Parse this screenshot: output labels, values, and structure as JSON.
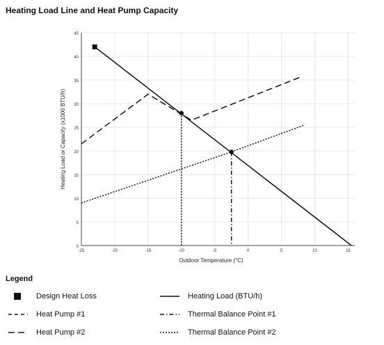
{
  "chart_data": {
    "type": "line",
    "title": "Heating Load Line and Heat Pump Capacity",
    "xlabel": "Outdoor Temperature (°C)",
    "ylabel": "Heating Load or Capacity (x1000 BTU/h)",
    "xlim": [
      -25,
      16
    ],
    "ylim": [
      0,
      45
    ],
    "xticks": [
      -25,
      -20,
      -15,
      -10,
      -5,
      0,
      5,
      10,
      15
    ],
    "yticks": [
      0,
      5,
      10,
      15,
      20,
      25,
      30,
      35,
      40,
      45
    ],
    "grid": true,
    "series": [
      {
        "name": "Heating Load (BTU/h)",
        "style": "solid",
        "points": [
          [
            -23,
            42
          ],
          [
            15.5,
            0
          ]
        ]
      },
      {
        "name": "Heat Pump #1",
        "style": "dotted",
        "points": [
          [
            -25,
            9
          ],
          [
            -2.5,
            19.8
          ],
          [
            8.5,
            25.5
          ]
        ]
      },
      {
        "name": "Heat Pump #2",
        "style": "dashed",
        "points": [
          [
            -25,
            21.5
          ],
          [
            -15,
            32
          ],
          [
            -8.5,
            26.5
          ],
          [
            8,
            35.7
          ]
        ]
      },
      {
        "name": "Thermal Balance Point #1",
        "style": "dashdot",
        "points": [
          [
            -2.5,
            19.8
          ],
          [
            -2.5,
            0
          ]
        ]
      },
      {
        "name": "Thermal Balance Point #2",
        "style": "dotted",
        "points": [
          [
            -10,
            28
          ],
          [
            -10,
            0
          ]
        ]
      }
    ],
    "markers": [
      {
        "name": "Design Heat Loss",
        "shape": "square",
        "x": -23,
        "y": 42
      },
      {
        "shape": "circle",
        "x": -10,
        "y": 28
      },
      {
        "shape": "circle",
        "x": -2.5,
        "y": 19.8
      }
    ]
  },
  "legend": {
    "title": "Legend",
    "items": [
      {
        "label": "Design Heat Loss",
        "style": "square"
      },
      {
        "label": "Heating Load (BTU/h)",
        "style": "solid"
      },
      {
        "label": "Heat Pump #1",
        "style": "dashed-short"
      },
      {
        "label": "Thermal Balance Point #1",
        "style": "dashdot"
      },
      {
        "label": "Heat Pump #2",
        "style": "dashed-long"
      },
      {
        "label": "Thermal Balance Point #2",
        "style": "dotted"
      }
    ]
  }
}
